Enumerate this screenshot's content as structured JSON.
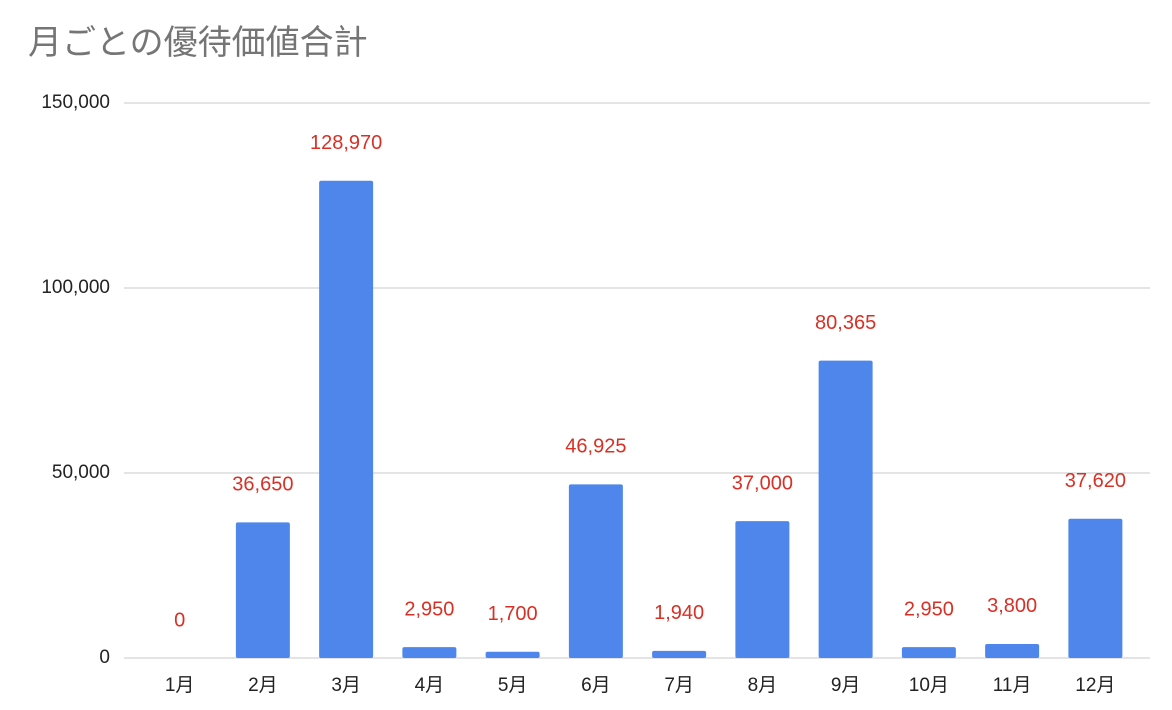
{
  "chart_data": {
    "type": "bar",
    "title": "月ごとの優待価値合計",
    "categories": [
      "1月",
      "2月",
      "3月",
      "4月",
      "5月",
      "6月",
      "7月",
      "8月",
      "9月",
      "10月",
      "11月",
      "12月"
    ],
    "values": [
      0,
      36650,
      128970,
      2950,
      1700,
      46925,
      1940,
      37000,
      80365,
      2950,
      3800,
      37620
    ],
    "value_labels": [
      "0",
      "36,650",
      "128,970",
      "2,950",
      "1,700",
      "46,925",
      "1,940",
      "37,000",
      "80,365",
      "2,950",
      "3,800",
      "37,620"
    ],
    "color": "#4f86ec",
    "label_color": "#d93025",
    "ylim": [
      0,
      150000
    ],
    "yticks": [
      0,
      {
        "value": 50000,
        "label": "50,000"
      },
      {
        "value": 100000,
        "label": "100,000"
      },
      {
        "value": 150000,
        "label": "150,000"
      }
    ],
    "grid": true
  }
}
